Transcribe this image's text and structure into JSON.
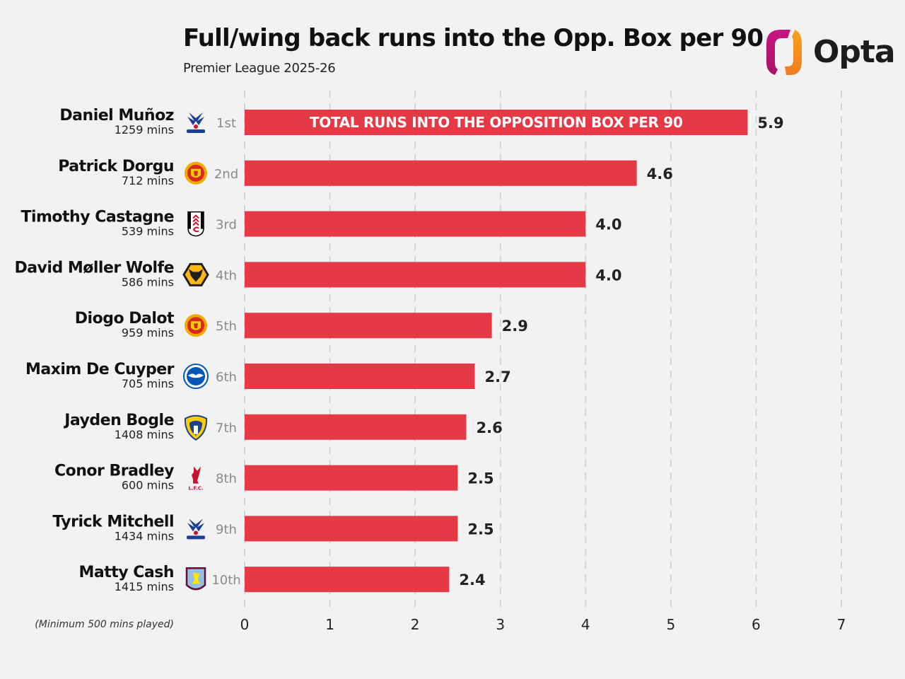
{
  "header": {
    "title": "Full/wing back runs into the Opp. Box per 90",
    "subtitle": "Premier League 2025-26",
    "brand": "Opta",
    "brand_colors": [
      "#c0157a",
      "#f7941d"
    ]
  },
  "footnote": "(Minimum 500 mins played)",
  "bar_color": "#e63946",
  "chart_data": {
    "type": "bar",
    "orientation": "horizontal",
    "title": "Full/wing back runs into the Opp. Box per 90",
    "subtitle": "Premier League 2025-26",
    "xlabel": "",
    "ylabel": "",
    "xlim": [
      0,
      7
    ],
    "xticks": [
      "0",
      "1",
      "2",
      "3",
      "4",
      "5",
      "6",
      "7"
    ],
    "grid": "vertical-dashed",
    "in_bar_label": "TOTAL RUNS INTO THE OPPOSITION BOX PER 90",
    "series": [
      {
        "name": "Total runs into the opposition box per 90",
        "values": [
          5.9,
          4.6,
          4.0,
          4.0,
          2.9,
          2.7,
          2.6,
          2.5,
          2.5,
          2.4
        ]
      }
    ],
    "categories": [
      "Daniel Muñoz",
      "Patrick Dorgu",
      "Timothy Castagne",
      "David Møller Wolfe",
      "Diogo Dalot",
      "Maxim De Cuyper",
      "Jayden Bogle",
      "Conor Bradley",
      "Tyrick Mitchell",
      "Matty Cash"
    ],
    "rows": [
      {
        "name": "Daniel Muñoz",
        "mins": "1259 mins",
        "rank": "1st",
        "club_icon": "crystal-palace-crest-icon",
        "value": 5.9,
        "label": "5.9"
      },
      {
        "name": "Patrick Dorgu",
        "mins": "712 mins",
        "rank": "2nd",
        "club_icon": "manchester-united-crest-icon",
        "value": 4.6,
        "label": "4.6"
      },
      {
        "name": "Timothy Castagne",
        "mins": "539 mins",
        "rank": "3rd",
        "club_icon": "fulham-crest-icon",
        "value": 4.0,
        "label": "4.0"
      },
      {
        "name": "David Møller Wolfe",
        "mins": "586 mins",
        "rank": "4th",
        "club_icon": "wolves-crest-icon",
        "value": 4.0,
        "label": "4.0"
      },
      {
        "name": "Diogo Dalot",
        "mins": "959 mins",
        "rank": "5th",
        "club_icon": "manchester-united-crest-icon",
        "value": 2.9,
        "label": "2.9"
      },
      {
        "name": "Maxim De Cuyper",
        "mins": "705 mins",
        "rank": "6th",
        "club_icon": "brighton-crest-icon",
        "value": 2.7,
        "label": "2.7"
      },
      {
        "name": "Jayden Bogle",
        "mins": "1408 mins",
        "rank": "7th",
        "club_icon": "leeds-crest-icon",
        "value": 2.6,
        "label": "2.6"
      },
      {
        "name": "Conor Bradley",
        "mins": "600 mins",
        "rank": "8th",
        "club_icon": "liverpool-crest-icon",
        "value": 2.5,
        "label": "2.5"
      },
      {
        "name": "Tyrick Mitchell",
        "mins": "1434 mins",
        "rank": "9th",
        "club_icon": "crystal-palace-crest-icon",
        "value": 2.5,
        "label": "2.5"
      },
      {
        "name": "Matty Cash",
        "mins": "1415 mins",
        "rank": "10th",
        "club_icon": "aston-villa-crest-icon",
        "value": 2.4,
        "label": "2.4"
      }
    ]
  }
}
